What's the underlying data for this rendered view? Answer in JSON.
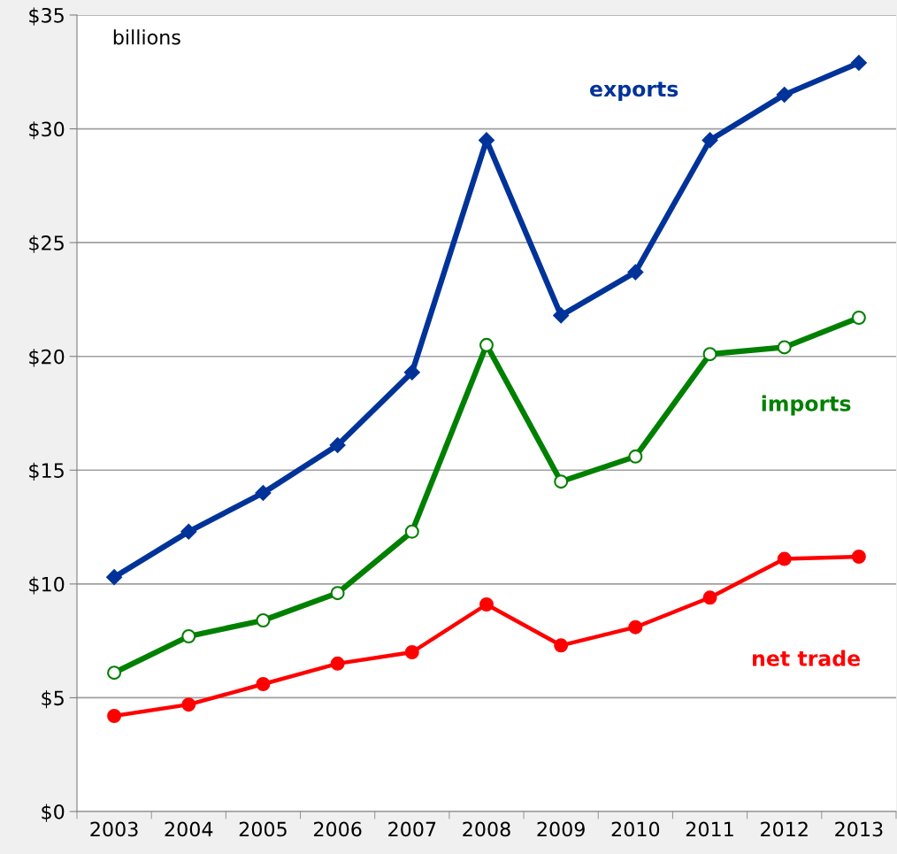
{
  "chart_data": {
    "type": "line",
    "categories": [
      "2003",
      "2004",
      "2005",
      "2006",
      "2007",
      "2008",
      "2009",
      "2010",
      "2011",
      "2012",
      "2013"
    ],
    "series": [
      {
        "name": "exports",
        "color": "#003399",
        "marker": "diamond",
        "values": [
          10.3,
          12.3,
          14.0,
          16.1,
          19.3,
          29.5,
          21.8,
          23.7,
          29.5,
          31.5,
          32.9
        ]
      },
      {
        "name": "imports",
        "color": "#008000",
        "marker": "circle",
        "values": [
          6.1,
          7.7,
          8.4,
          9.6,
          12.3,
          20.5,
          14.5,
          15.6,
          20.1,
          20.4,
          21.7
        ]
      },
      {
        "name": "net trade",
        "color": "#ff0000",
        "marker": "circle",
        "values": [
          4.2,
          4.7,
          5.6,
          6.5,
          7.0,
          9.1,
          7.3,
          8.1,
          9.4,
          11.1,
          11.2
        ]
      }
    ],
    "ylim": [
      0,
      35
    ],
    "yticks": [
      {
        "value": 0,
        "label": "$0"
      },
      {
        "value": 5,
        "label": "$5"
      },
      {
        "value": 10,
        "label": "$10"
      },
      {
        "value": 15,
        "label": "$15"
      },
      {
        "value": 20,
        "label": "$20"
      },
      {
        "value": 25,
        "label": "$25"
      },
      {
        "value": 30,
        "label": "$30"
      },
      {
        "value": 35,
        "label": "$35"
      }
    ],
    "grid": "y",
    "legend": false,
    "annotations": [
      "billions"
    ]
  }
}
